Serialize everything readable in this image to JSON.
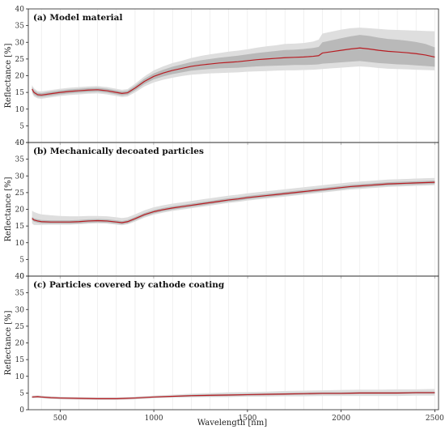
{
  "figure": {
    "xlabel": "Wavelength [nm]",
    "ylabel": "Reflectance [%]"
  },
  "colors": {
    "mean_line": "#b81c22",
    "band_inner": "#b9b9b9",
    "band_outer": "#dedede",
    "grid": "#e6e6e6",
    "frame": "#222222"
  },
  "chart_data": [
    {
      "type": "line",
      "title": "(a) Model material",
      "xlabel": "",
      "ylabel": "Reflectance [%]",
      "xlim": [
        330,
        2520
      ],
      "ylim": [
        0,
        40
      ],
      "x_ticks": [
        500,
        1000,
        1500,
        2000,
        2500
      ],
      "y_ticks": [
        0,
        5,
        10,
        15,
        20,
        25,
        30,
        35,
        40
      ],
      "grid": true,
      "x": [
        350,
        360,
        380,
        400,
        450,
        500,
        550,
        600,
        650,
        700,
        750,
        800,
        830,
        860,
        900,
        950,
        1000,
        1050,
        1100,
        1150,
        1200,
        1250,
        1300,
        1350,
        1400,
        1450,
        1500,
        1550,
        1600,
        1650,
        1700,
        1750,
        1800,
        1850,
        1880,
        1900,
        1950,
        2000,
        2050,
        2100,
        2150,
        2200,
        2250,
        2300,
        2350,
        2400,
        2450,
        2500
      ],
      "series": [
        {
          "role": "mean",
          "values": [
            16.0,
            15.0,
            14.3,
            14.2,
            14.6,
            15.0,
            15.3,
            15.5,
            15.7,
            15.8,
            15.5,
            15.0,
            14.7,
            14.9,
            16.3,
            18.3,
            19.8,
            20.8,
            21.6,
            22.2,
            22.8,
            23.2,
            23.5,
            23.8,
            24.0,
            24.2,
            24.5,
            24.8,
            25.0,
            25.2,
            25.4,
            25.5,
            25.6,
            25.8,
            26.0,
            26.8,
            27.2,
            27.6,
            28.0,
            28.3,
            28.0,
            27.6,
            27.3,
            27.1,
            26.9,
            26.6,
            26.2,
            25.6
          ]
        },
        {
          "role": "inner_band_lower",
          "values": [
            15.3,
            14.3,
            13.7,
            13.6,
            14.0,
            14.4,
            14.7,
            14.9,
            15.1,
            15.2,
            14.9,
            14.4,
            14.1,
            14.3,
            15.6,
            17.5,
            18.9,
            19.8,
            20.5,
            21.0,
            21.5,
            21.8,
            22.0,
            22.2,
            22.3,
            22.4,
            22.6,
            22.8,
            22.9,
            23.0,
            23.1,
            23.2,
            23.2,
            23.3,
            23.4,
            23.6,
            23.8,
            24.0,
            24.2,
            24.4,
            24.1,
            23.8,
            23.6,
            23.4,
            23.3,
            23.1,
            22.9,
            22.7
          ]
        },
        {
          "role": "inner_band_upper",
          "values": [
            16.7,
            15.7,
            14.9,
            14.8,
            15.2,
            15.6,
            15.9,
            16.1,
            16.3,
            16.4,
            16.1,
            15.6,
            15.3,
            15.5,
            17.0,
            19.1,
            20.7,
            21.8,
            22.7,
            23.4,
            24.1,
            24.6,
            25.0,
            25.4,
            25.7,
            26.0,
            26.4,
            26.8,
            27.1,
            27.4,
            27.7,
            27.8,
            28.0,
            28.3,
            28.6,
            30.0,
            30.6,
            31.2,
            31.8,
            32.2,
            31.9,
            31.4,
            31.0,
            30.8,
            30.5,
            30.1,
            29.5,
            28.5
          ]
        },
        {
          "role": "outer_band_lower",
          "values": [
            14.8,
            13.8,
            13.2,
            13.1,
            13.5,
            13.9,
            14.2,
            14.4,
            14.6,
            14.7,
            14.4,
            13.9,
            13.6,
            13.8,
            15.0,
            16.8,
            18.0,
            18.8,
            19.4,
            19.9,
            20.3,
            20.5,
            20.7,
            20.8,
            20.9,
            21.0,
            21.2,
            21.3,
            21.4,
            21.5,
            21.6,
            21.6,
            21.7,
            21.8,
            21.9,
            22.0,
            22.2,
            22.4,
            22.6,
            22.8,
            22.6,
            22.3,
            22.1,
            22.0,
            21.9,
            21.8,
            21.7,
            21.6
          ]
        },
        {
          "role": "outer_band_upper",
          "values": [
            17.2,
            16.2,
            15.4,
            15.3,
            15.7,
            16.1,
            16.4,
            16.6,
            16.8,
            16.9,
            16.6,
            16.1,
            15.8,
            16.0,
            17.6,
            19.8,
            21.6,
            22.8,
            23.8,
            24.5,
            25.3,
            25.9,
            26.4,
            26.8,
            27.2,
            27.5,
            27.9,
            28.4,
            28.8,
            29.1,
            29.5,
            29.6,
            29.8,
            30.2,
            30.8,
            32.6,
            33.2,
            33.8,
            34.2,
            34.4,
            34.2,
            34.0,
            33.8,
            33.7,
            33.6,
            33.5,
            33.4,
            33.3
          ]
        }
      ]
    },
    {
      "type": "line",
      "title": "(b) Mechanically decoated particles",
      "xlabel": "",
      "ylabel": "Reflectance [%]",
      "xlim": [
        330,
        2520
      ],
      "ylim": [
        0,
        40
      ],
      "x_ticks": [
        500,
        1000,
        1500,
        2000,
        2500
      ],
      "y_ticks": [
        0,
        5,
        10,
        15,
        20,
        25,
        30,
        35,
        40
      ],
      "grid": true,
      "x": [
        350,
        360,
        380,
        400,
        450,
        500,
        550,
        600,
        650,
        700,
        750,
        800,
        830,
        860,
        900,
        950,
        1000,
        1050,
        1100,
        1150,
        1200,
        1250,
        1300,
        1350,
        1400,
        1450,
        1500,
        1550,
        1600,
        1650,
        1700,
        1750,
        1800,
        1850,
        1900,
        1950,
        2000,
        2050,
        2100,
        2150,
        2200,
        2250,
        2300,
        2350,
        2400,
        2450,
        2500
      ],
      "series": [
        {
          "role": "mean",
          "values": [
            17.3,
            16.8,
            16.5,
            16.3,
            16.2,
            16.2,
            16.2,
            16.3,
            16.5,
            16.6,
            16.5,
            16.2,
            16.0,
            16.3,
            17.2,
            18.4,
            19.3,
            19.9,
            20.4,
            20.8,
            21.2,
            21.6,
            22.0,
            22.4,
            22.8,
            23.1,
            23.5,
            23.8,
            24.1,
            24.4,
            24.7,
            25.0,
            25.3,
            25.6,
            25.9,
            26.2,
            26.5,
            26.8,
            27.0,
            27.2,
            27.4,
            27.6,
            27.7,
            27.8,
            27.9,
            28.0,
            28.1
          ]
        },
        {
          "role": "inner_band_lower",
          "values": [
            16.8,
            16.3,
            16.0,
            15.8,
            15.7,
            15.7,
            15.7,
            15.8,
            16.0,
            16.1,
            16.0,
            15.7,
            15.5,
            15.8,
            16.7,
            17.9,
            18.8,
            19.4,
            19.9,
            20.3,
            20.7,
            21.1,
            21.5,
            21.9,
            22.3,
            22.6,
            23.0,
            23.3,
            23.6,
            23.9,
            24.2,
            24.5,
            24.8,
            25.1,
            25.4,
            25.7,
            26.0,
            26.3,
            26.5,
            26.7,
            26.9,
            27.1,
            27.2,
            27.3,
            27.4,
            27.5,
            27.6
          ]
        },
        {
          "role": "inner_band_upper",
          "values": [
            17.8,
            17.3,
            17.0,
            16.8,
            16.7,
            16.7,
            16.7,
            16.8,
            17.0,
            17.1,
            17.0,
            16.7,
            16.5,
            16.8,
            17.7,
            18.9,
            19.8,
            20.4,
            20.9,
            21.3,
            21.7,
            22.1,
            22.5,
            22.9,
            23.3,
            23.6,
            24.0,
            24.3,
            24.6,
            24.9,
            25.2,
            25.5,
            25.8,
            26.1,
            26.4,
            26.7,
            27.0,
            27.3,
            27.5,
            27.7,
            27.9,
            28.1,
            28.2,
            28.3,
            28.4,
            28.5,
            28.6
          ]
        },
        {
          "role": "outer_band_lower",
          "values": [
            15.8,
            15.3,
            15.3,
            15.3,
            15.4,
            15.4,
            15.4,
            15.5,
            15.7,
            15.8,
            15.7,
            15.4,
            15.2,
            15.5,
            16.3,
            17.5,
            18.4,
            19.0,
            19.5,
            19.9,
            20.3,
            20.7,
            21.1,
            21.5,
            21.9,
            22.2,
            22.6,
            22.9,
            23.2,
            23.5,
            23.8,
            24.1,
            24.4,
            24.7,
            25.0,
            25.3,
            25.6,
            25.9,
            26.1,
            26.3,
            26.5,
            26.7,
            26.8,
            26.9,
            27.0,
            27.1,
            27.2
          ]
        },
        {
          "role": "outer_band_upper",
          "values": [
            19.6,
            19.2,
            18.8,
            18.5,
            18.2,
            18.0,
            17.9,
            17.9,
            18.0,
            18.0,
            17.9,
            17.6,
            17.4,
            17.6,
            18.5,
            19.7,
            20.6,
            21.2,
            21.7,
            22.1,
            22.5,
            22.9,
            23.3,
            23.7,
            24.1,
            24.4,
            24.8,
            25.1,
            25.4,
            25.7,
            26.0,
            26.3,
            26.6,
            26.9,
            27.2,
            27.5,
            27.8,
            28.1,
            28.3,
            28.5,
            28.7,
            28.9,
            29.0,
            29.1,
            29.2,
            29.3,
            29.4
          ]
        }
      ]
    },
    {
      "type": "line",
      "title": "(c) Particles covered by cathode coating",
      "xlabel": "Wavelength [nm]",
      "ylabel": "Reflectance [%]",
      "xlim": [
        330,
        2520
      ],
      "ylim": [
        0,
        40
      ],
      "x_ticks": [
        500,
        1000,
        1500,
        2000,
        2500
      ],
      "y_ticks": [
        0,
        5,
        10,
        15,
        20,
        25,
        30,
        35,
        40
      ],
      "grid": true,
      "x": [
        350,
        380,
        400,
        450,
        500,
        600,
        700,
        800,
        850,
        900,
        1000,
        1100,
        1200,
        1300,
        1400,
        1500,
        1600,
        1700,
        1800,
        1900,
        2000,
        2100,
        2200,
        2300,
        2400,
        2500
      ],
      "series": [
        {
          "role": "mean",
          "values": [
            3.8,
            3.9,
            3.8,
            3.6,
            3.5,
            3.4,
            3.3,
            3.3,
            3.4,
            3.5,
            3.8,
            4.0,
            4.2,
            4.3,
            4.4,
            4.5,
            4.6,
            4.7,
            4.8,
            4.9,
            4.9,
            5.0,
            5.0,
            5.0,
            5.1,
            5.1
          ]
        },
        {
          "role": "inner_band_lower",
          "values": [
            3.6,
            3.7,
            3.6,
            3.4,
            3.3,
            3.2,
            3.1,
            3.1,
            3.2,
            3.3,
            3.6,
            3.8,
            3.9,
            4.0,
            4.1,
            4.2,
            4.3,
            4.4,
            4.5,
            4.6,
            4.6,
            4.7,
            4.7,
            4.7,
            4.8,
            4.8
          ]
        },
        {
          "role": "inner_band_upper",
          "values": [
            4.0,
            4.1,
            4.0,
            3.8,
            3.7,
            3.6,
            3.5,
            3.5,
            3.6,
            3.7,
            4.0,
            4.2,
            4.5,
            4.6,
            4.7,
            4.8,
            4.9,
            5.0,
            5.1,
            5.2,
            5.2,
            5.3,
            5.3,
            5.3,
            5.4,
            5.4
          ]
        },
        {
          "role": "outer_band_lower",
          "values": [
            3.4,
            3.5,
            3.4,
            3.2,
            3.1,
            3.0,
            2.9,
            2.9,
            3.0,
            3.1,
            3.4,
            3.6,
            3.7,
            3.8,
            3.8,
            3.9,
            3.9,
            4.0,
            4.0,
            4.1,
            4.1,
            4.1,
            4.1,
            4.1,
            4.2,
            4.2
          ]
        },
        {
          "role": "outer_band_upper",
          "values": [
            4.2,
            4.3,
            4.2,
            4.0,
            3.9,
            3.8,
            3.7,
            3.7,
            3.8,
            3.9,
            4.2,
            4.5,
            4.8,
            5.0,
            5.2,
            5.3,
            5.4,
            5.6,
            5.7,
            5.8,
            5.9,
            6.0,
            6.0,
            6.1,
            6.1,
            6.2
          ]
        }
      ]
    }
  ]
}
